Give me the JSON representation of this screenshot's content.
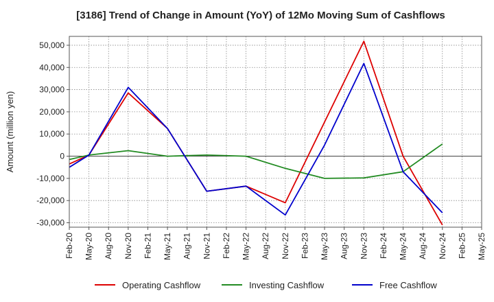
{
  "chart_data": {
    "type": "line",
    "title": "[3186]  Trend of Change in Amount (YoY) of 12Mo Moving Sum of Cashflows",
    "xlabel": "",
    "ylabel": "Amount (million yen)",
    "ylim": [
      -32000,
      54000
    ],
    "yticks": [
      -30000,
      -20000,
      -10000,
      0,
      10000,
      20000,
      30000,
      40000,
      50000
    ],
    "ytick_labels": [
      "-30,000",
      "-20,000",
      "-10,000",
      "0",
      "10,000",
      "20,000",
      "30,000",
      "40,000",
      "50,000"
    ],
    "categories": [
      "Feb-20",
      "May-20",
      "Aug-20",
      "Nov-20",
      "Feb-21",
      "May-21",
      "Aug-21",
      "Nov-21",
      "Feb-22",
      "May-22",
      "Aug-22",
      "Nov-22",
      "Feb-23",
      "May-23",
      "Aug-23",
      "Nov-23",
      "Feb-24",
      "May-24",
      "Aug-24",
      "Nov-24",
      "Feb-25",
      "May-25"
    ],
    "grid": true,
    "legend_position": "bottom",
    "series": [
      {
        "name": "Operating Cashflow",
        "color": "#dd0000",
        "values": [
          -3500,
          500,
          null,
          28500,
          null,
          12500,
          null,
          -15800,
          null,
          -13500,
          null,
          -21000,
          null,
          null,
          null,
          51800,
          null,
          0,
          null,
          -31000,
          null,
          null
        ]
      },
      {
        "name": "Investing Cashflow",
        "color": "#228b22",
        "values": [
          -1500,
          500,
          null,
          2500,
          null,
          0,
          null,
          500,
          null,
          0,
          null,
          -5500,
          null,
          -10000,
          null,
          -9800,
          null,
          -7000,
          null,
          5500,
          null,
          null
        ]
      },
      {
        "name": "Free Cashflow",
        "color": "#0000cc",
        "values": [
          -5000,
          500,
          null,
          31000,
          null,
          12500,
          null,
          -15800,
          null,
          -13500,
          null,
          -26500,
          null,
          5000,
          null,
          41800,
          null,
          -7000,
          null,
          -25500,
          null,
          null
        ]
      }
    ]
  }
}
